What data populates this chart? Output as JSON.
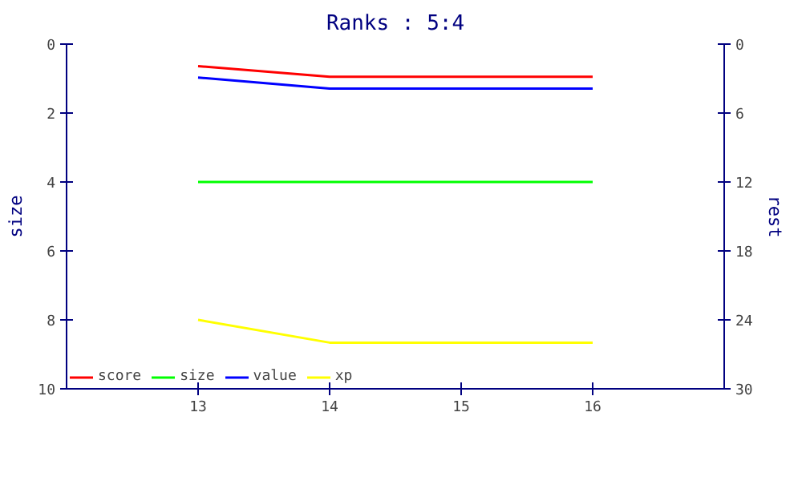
{
  "chart_data": {
    "type": "line",
    "title": "Ranks : 5:4",
    "ylabel": "size",
    "y2label": "rest",
    "x": [
      13,
      14,
      15,
      16
    ],
    "series": [
      {
        "name": "score",
        "color": "#ff0000",
        "values": [
          0.64,
          0.95,
          0.95,
          0.95
        ]
      },
      {
        "name": "size",
        "color": "#00ff00",
        "values": [
          4,
          4,
          4,
          4
        ]
      },
      {
        "name": "value",
        "color": "#0000ff",
        "values": [
          0.97,
          1.29,
          1.29,
          1.29
        ]
      },
      {
        "name": "xp",
        "color": "#ffff00",
        "values": [
          8,
          8.66,
          8.66,
          8.66
        ]
      }
    ],
    "xlim": [
      12,
      17
    ],
    "xticks": [
      13,
      14,
      15,
      16
    ],
    "ylim": [
      10,
      0
    ],
    "yticks": [
      0,
      2,
      4,
      6,
      8,
      10
    ],
    "y2lim": [
      30,
      0
    ],
    "y2ticks": [
      0,
      6,
      12,
      18,
      24,
      30
    ],
    "grid": false,
    "legend": "bottom left",
    "marker": "none",
    "line_style": "solid"
  }
}
